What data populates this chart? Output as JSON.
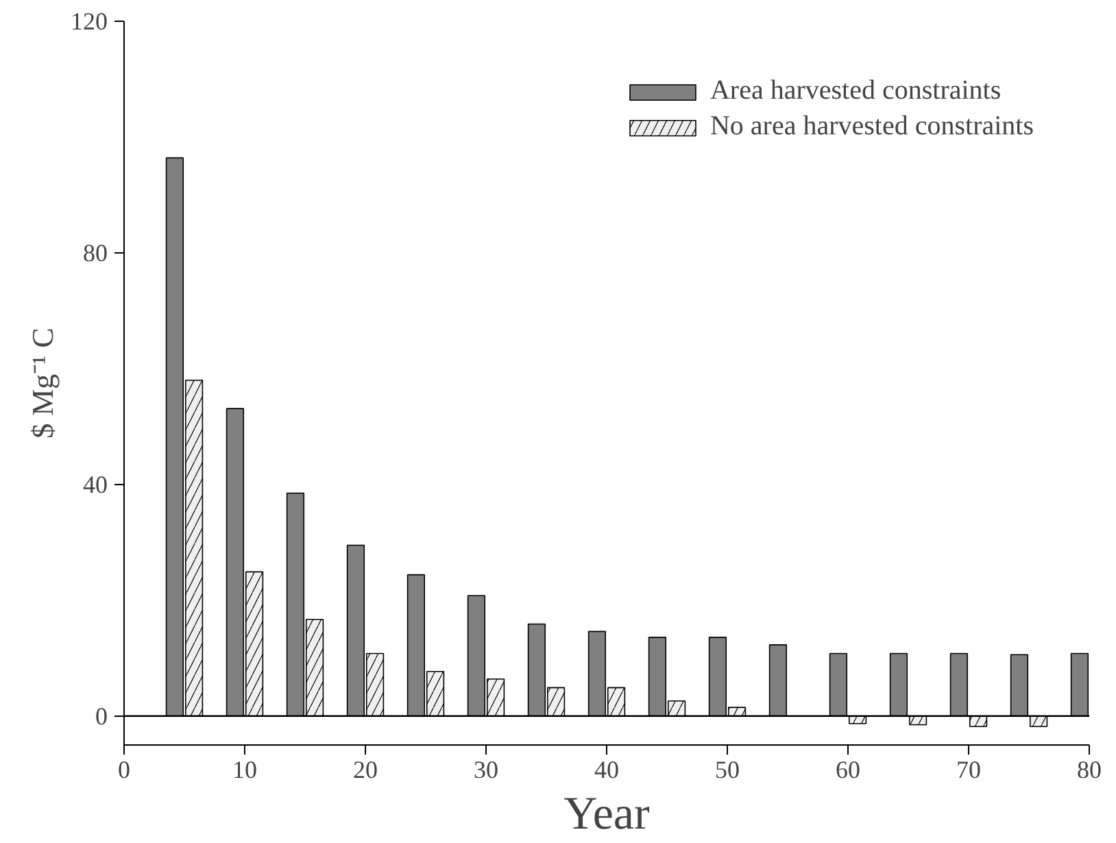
{
  "chart_data": {
    "type": "bar",
    "xlabel": "Year",
    "ylabel": "$ Mg⁻¹ C",
    "x": [
      5,
      10,
      15,
      20,
      25,
      30,
      35,
      40,
      45,
      50,
      55,
      60,
      65,
      70,
      75,
      80
    ],
    "series": [
      {
        "name": "Area harvested constraints",
        "color": "#808080",
        "values": [
          96.4,
          53.1,
          38.5,
          29.5,
          24.4,
          20.8,
          15.9,
          14.6,
          13.6,
          13.6,
          12.3,
          10.8,
          10.8,
          10.8,
          10.6,
          10.8
        ]
      },
      {
        "name": "No area harvested constraints",
        "color": "#f0f0f0",
        "values": [
          58,
          24.9,
          16.7,
          10.8,
          7.7,
          6.4,
          4.9,
          4.9,
          2.6,
          1.5,
          null,
          -1.3,
          -1.5,
          -1.8,
          -1.8,
          null
        ]
      }
    ],
    "xlim": [
      0,
      80
    ],
    "xticks": [
      0,
      10,
      20,
      30,
      40,
      50,
      60,
      70,
      80
    ],
    "ylim": [
      -5,
      120
    ],
    "yticks": [
      0,
      40,
      80,
      120
    ],
    "ref_lines": [
      {
        "axis": "y",
        "value": 0
      }
    ],
    "grid": false,
    "legend": "top right"
  }
}
